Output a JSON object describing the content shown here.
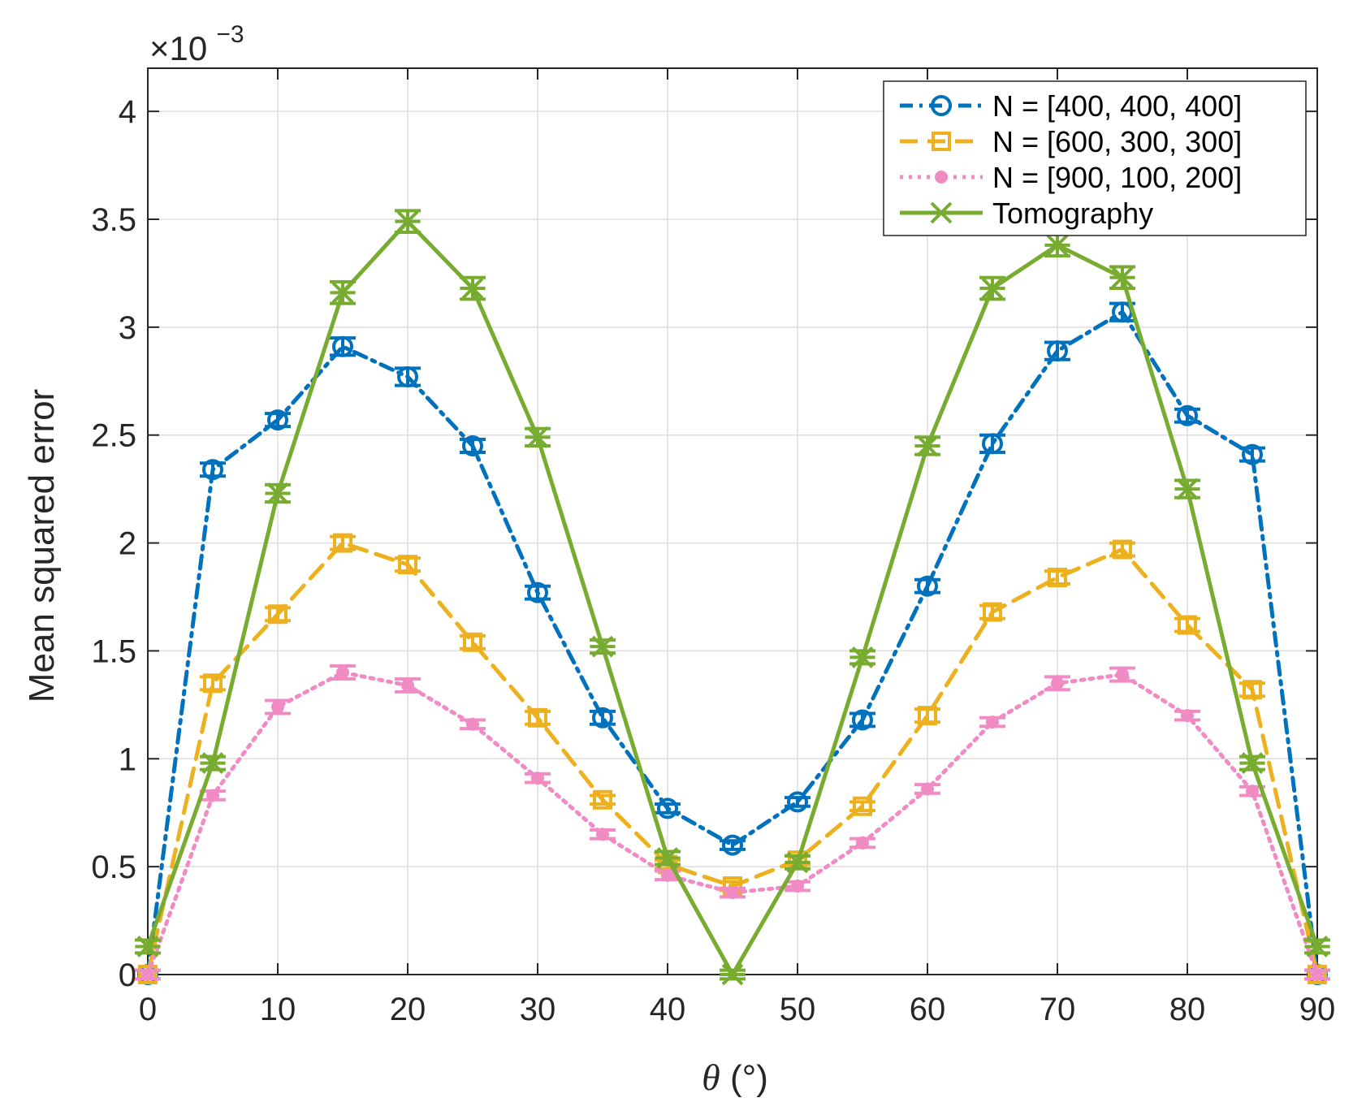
{
  "chart_data": {
    "type": "line",
    "title": "",
    "xlabel_symbol": "θ",
    "xlabel_unit": " (°)",
    "ylabel": "Mean squared error",
    "y_exponent_prefix": "×10",
    "y_exponent_power": "−3",
    "xlim": [
      0,
      90
    ],
    "ylim": [
      0,
      4.2
    ],
    "xticks": [
      0,
      10,
      20,
      30,
      40,
      50,
      60,
      70,
      80,
      90
    ],
    "yticks": [
      0,
      0.5,
      1,
      1.5,
      2,
      2.5,
      3,
      3.5,
      4
    ],
    "ytick_labels": [
      "0",
      "0.5",
      "1",
      "1.5",
      "2",
      "2.5",
      "3",
      "3.5",
      "4"
    ],
    "grid": true,
    "legend_position": "top-right",
    "x": [
      0,
      5,
      10,
      15,
      20,
      25,
      30,
      35,
      40,
      45,
      50,
      55,
      60,
      65,
      70,
      75,
      80,
      85,
      90
    ],
    "series": [
      {
        "name": "N = [400, 400, 400]",
        "color": "#0072BD",
        "dash": "dashdot",
        "marker": "circle",
        "values": [
          0.0,
          2.34,
          2.57,
          2.91,
          2.77,
          2.45,
          1.77,
          1.19,
          0.77,
          0.6,
          0.8,
          1.18,
          1.8,
          2.46,
          2.89,
          3.07,
          2.59,
          2.41,
          0.0
        ],
        "errors": [
          0.02,
          0.03,
          0.03,
          0.04,
          0.04,
          0.03,
          0.03,
          0.03,
          0.02,
          0.02,
          0.02,
          0.03,
          0.03,
          0.04,
          0.04,
          0.04,
          0.03,
          0.03,
          0.02
        ]
      },
      {
        "name": "N = [600, 300, 300]",
        "color": "#EDB120",
        "dash": "dashed",
        "marker": "square",
        "values": [
          0.0,
          1.35,
          1.67,
          2.0,
          1.9,
          1.54,
          1.19,
          0.81,
          0.51,
          0.41,
          0.53,
          0.78,
          1.2,
          1.68,
          1.84,
          1.97,
          1.62,
          1.32,
          0.0
        ],
        "errors": [
          0.02,
          0.03,
          0.03,
          0.03,
          0.03,
          0.03,
          0.03,
          0.02,
          0.02,
          0.02,
          0.02,
          0.02,
          0.03,
          0.03,
          0.03,
          0.03,
          0.03,
          0.03,
          0.02
        ]
      },
      {
        "name": "N = [900, 100, 200]",
        "color": "#F08BC4",
        "dash": "dotted",
        "marker": "dot",
        "values": [
          0.0,
          0.83,
          1.24,
          1.4,
          1.34,
          1.16,
          0.91,
          0.65,
          0.46,
          0.38,
          0.41,
          0.61,
          0.86,
          1.17,
          1.35,
          1.39,
          1.2,
          0.85,
          0.0
        ],
        "errors": [
          0.02,
          0.02,
          0.03,
          0.03,
          0.03,
          0.02,
          0.02,
          0.02,
          0.02,
          0.02,
          0.02,
          0.02,
          0.02,
          0.02,
          0.03,
          0.03,
          0.02,
          0.02,
          0.02
        ]
      },
      {
        "name": "Tomography",
        "color": "#77AC30",
        "dash": "solid",
        "marker": "asterisk",
        "values": [
          0.13,
          0.98,
          2.23,
          3.16,
          3.49,
          3.18,
          2.49,
          1.52,
          0.54,
          0.0,
          0.52,
          1.47,
          2.45,
          3.18,
          3.38,
          3.23,
          2.25,
          0.98,
          0.13
        ],
        "errors": [
          0.03,
          0.03,
          0.04,
          0.05,
          0.05,
          0.05,
          0.04,
          0.03,
          0.03,
          0.02,
          0.03,
          0.03,
          0.04,
          0.05,
          0.05,
          0.05,
          0.04,
          0.03,
          0.03
        ]
      }
    ]
  }
}
